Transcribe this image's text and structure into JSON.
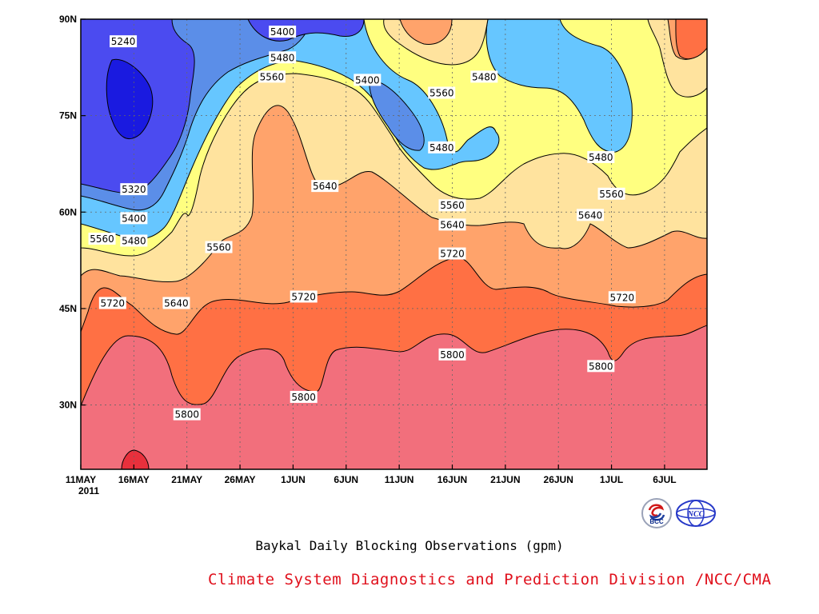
{
  "chart_data": {
    "type": "heatmap",
    "subtype": "filled-contour",
    "title": "Baykal Daily Blocking Observations (gpm)",
    "credit": "Climate System Diagnostics and Prediction Division /NCC/CMA",
    "x_ticks": [
      "11MAY",
      "16MAY",
      "21MAY",
      "26MAY",
      "1JUN",
      "6JUN",
      "11JUN",
      "16JUN",
      "21JUN",
      "26JUN",
      "1JUL",
      "6JUL"
    ],
    "x_year": "2011",
    "x_range": [
      "2011-05-11",
      "2011-07-09"
    ],
    "y_ticks": [
      "30N",
      "45N",
      "60N",
      "75N",
      "90N"
    ],
    "y_range": [
      20,
      90
    ],
    "grid": true,
    "contour_levels": [
      5240,
      5320,
      5400,
      5480,
      5560,
      5640,
      5720,
      5800,
      5880
    ],
    "fill_colors": [
      "#1a1ae0",
      "#4b4bf0",
      "#5b8ee8",
      "#66c6ff",
      "#ffff80",
      "#ffe39e",
      "#ffa36b",
      "#ff7044",
      "#f26f7c",
      "#e8303c"
    ],
    "contour_labels": [
      {
        "text": "5240",
        "date": "2011-05-15",
        "lat": 86.5
      },
      {
        "text": "5320",
        "date": "2011-05-16",
        "lat": 63.5
      },
      {
        "text": "5400",
        "date": "2011-05-16",
        "lat": 59.0
      },
      {
        "text": "5480",
        "date": "2011-05-16",
        "lat": 55.5
      },
      {
        "text": "5560",
        "date": "2011-05-13",
        "lat": 55.8
      },
      {
        "text": "5560",
        "date": "2011-05-24",
        "lat": 54.5
      },
      {
        "text": "5400",
        "date": "2011-05-30",
        "lat": 88.0
      },
      {
        "text": "5480",
        "date": "2011-05-30",
        "lat": 84.0
      },
      {
        "text": "5560",
        "date": "2011-05-29",
        "lat": 81.0
      },
      {
        "text": "5400",
        "date": "2011-06-07",
        "lat": 80.5
      },
      {
        "text": "5560",
        "date": "2011-06-14",
        "lat": 78.5
      },
      {
        "text": "5480",
        "date": "2011-06-18",
        "lat": 81.0
      },
      {
        "text": "5480",
        "date": "2011-06-14",
        "lat": 70.0
      },
      {
        "text": "5480",
        "date": "2011-06-29",
        "lat": 68.5
      },
      {
        "text": "5640",
        "date": "2011-06-03",
        "lat": 64.0
      },
      {
        "text": "5560",
        "date": "2011-06-15",
        "lat": 61.0
      },
      {
        "text": "5640",
        "date": "2011-06-15",
        "lat": 58.0
      },
      {
        "text": "5640",
        "date": "2011-06-28",
        "lat": 59.5
      },
      {
        "text": "5560",
        "date": "2011-06-30",
        "lat": 62.8
      },
      {
        "text": "5720",
        "date": "2011-05-14",
        "lat": 45.8
      },
      {
        "text": "5640",
        "date": "2011-05-20",
        "lat": 45.8
      },
      {
        "text": "5720",
        "date": "2011-06-01",
        "lat": 46.8
      },
      {
        "text": "5720",
        "date": "2011-06-15",
        "lat": 53.5
      },
      {
        "text": "5720",
        "date": "2011-07-01",
        "lat": 46.7
      },
      {
        "text": "5800",
        "date": "2011-05-21",
        "lat": 28.5
      },
      {
        "text": "5800",
        "date": "2011-06-01",
        "lat": 31.2
      },
      {
        "text": "5800",
        "date": "2011-06-15",
        "lat": 37.8
      },
      {
        "text": "5800",
        "date": "2011-06-29",
        "lat": 36.0
      }
    ]
  },
  "logos": [
    {
      "icon": "bcc-logo-icon",
      "text": "BCC"
    },
    {
      "icon": "ncc-logo-icon",
      "text": "NCC"
    }
  ]
}
